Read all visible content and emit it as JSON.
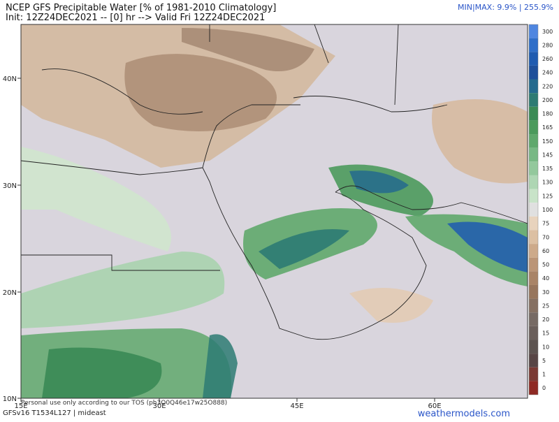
{
  "header": {
    "title": "NCEP GFS Precipitable Water [% of 1981-2010 Climatology]",
    "subtitle": "Init: 12Z24DEC2021 -- [0] hr --> Valid Fri 12Z24DEC2021",
    "minmax": "MIN|MAX: 9.9% | 255.9%"
  },
  "map": {
    "lat_labels": [
      "40N",
      "30N",
      "20N",
      "10N"
    ],
    "lon_labels": [
      "15E",
      "30E",
      "45E",
      "60E"
    ]
  },
  "colorbar": {
    "labels": [
      "300",
      "280",
      "260",
      "240",
      "220",
      "200",
      "180",
      "165",
      "150",
      "145",
      "135",
      "130",
      "125",
      "100",
      "75",
      "70",
      "60",
      "50",
      "40",
      "30",
      "25",
      "20",
      "15",
      "10",
      "5",
      "1",
      "0"
    ],
    "colors": [
      "#4f86e0",
      "#2f6ec8",
      "#1f5bb0",
      "#1e4f9a",
      "#246a8e",
      "#2d7b73",
      "#3a8a55",
      "#4b9a5c",
      "#5fa86c",
      "#78b884",
      "#93c89c",
      "#aed6b3",
      "#c8e3c8",
      "#e0e0e0",
      "#e8d3bd",
      "#dcc0a3",
      "#cdaa8a",
      "#bb9577",
      "#a98467",
      "#97765d",
      "#857062",
      "#766a64",
      "#6a5f5b",
      "#5c5350",
      "#574545",
      "#7a3a34",
      "#8e2a24"
    ]
  },
  "footer": {
    "notice": "Personal use only according to our TOS (ph3O0Q46e17w25O888)",
    "model": "GFSv16 T1534L127 | mideast",
    "site": "weathermodels.com"
  }
}
